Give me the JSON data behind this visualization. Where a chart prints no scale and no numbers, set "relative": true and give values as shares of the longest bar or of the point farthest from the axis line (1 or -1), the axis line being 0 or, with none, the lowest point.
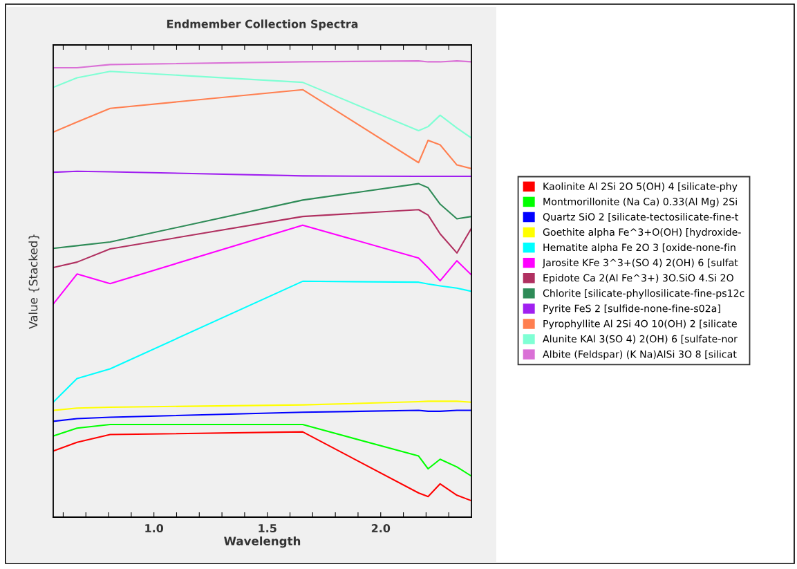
{
  "chart_data": {
    "type": "line",
    "title": "Endmember Collection Spectra",
    "xlabel": "Wavelength",
    "ylabel": "Value {Stacked}",
    "relative": true,
    "x": [
      0.556,
      0.661,
      0.807,
      1.656,
      2.167,
      2.209,
      2.262,
      2.336,
      2.4
    ],
    "xlim": [
      0.556,
      2.4
    ],
    "xticks": [
      {
        "value": 0.6,
        "label": null
      },
      {
        "value": 0.7,
        "label": null
      },
      {
        "value": 0.8,
        "label": null
      },
      {
        "value": 0.9,
        "label": null
      },
      {
        "value": 1.0,
        "label": "1.0"
      },
      {
        "value": 1.1,
        "label": null
      },
      {
        "value": 1.2,
        "label": null
      },
      {
        "value": 1.3,
        "label": null
      },
      {
        "value": 1.4,
        "label": null
      },
      {
        "value": 1.5,
        "label": "1.5"
      },
      {
        "value": 1.6,
        "label": null
      },
      {
        "value": 1.7,
        "label": null
      },
      {
        "value": 1.8,
        "label": null
      },
      {
        "value": 1.9,
        "label": null
      },
      {
        "value": 2.0,
        "label": "2.0"
      },
      {
        "value": 2.1,
        "label": null
      },
      {
        "value": 2.2,
        "label": null
      },
      {
        "value": 2.3,
        "label": null
      }
    ],
    "grid": false,
    "legend": "right",
    "marker": "none",
    "line_style": "solid",
    "series": [
      {
        "name": "Kaolinite Al 2Si 2O 5(OH) 4 [silicate-phy",
        "color": "#ff0000",
        "values": [
          0.145,
          0.164,
          0.181,
          0.187,
          0.053,
          0.045,
          0.073,
          0.048,
          0.036
        ]
      },
      {
        "name": "Montmorillonite (Na Ca) 0.33(Al Mg) 2Si",
        "color": "#00ff00",
        "values": [
          0.178,
          0.195,
          0.203,
          0.203,
          0.134,
          0.106,
          0.127,
          0.11,
          0.09
        ]
      },
      {
        "name": "Quartz SiO 2 [silicate-tectosilicate-fine-t",
        "color": "#0000ff",
        "values": [
          0.21,
          0.216,
          0.219,
          0.23,
          0.234,
          0.232,
          0.232,
          0.234,
          0.234
        ]
      },
      {
        "name": "Goethite alpha Fe^3+O(OH) [hydroxide-",
        "color": "#ffff00",
        "values": [
          0.234,
          0.239,
          0.241,
          0.246,
          0.253,
          0.254,
          0.254,
          0.254,
          0.252
        ]
      },
      {
        "name": "Hematite alpha Fe 2O 3 [oxide-none-fin",
        "color": "#00ffff",
        "values": [
          0.252,
          0.304,
          0.325,
          0.517,
          0.515,
          0.511,
          0.507,
          0.502,
          0.495
        ]
      },
      {
        "name": "Jarosite KFe 3^3+(SO 4) 2(OH) 6 [sulfat",
        "color": "#ff00ff",
        "values": [
          0.467,
          0.533,
          0.512,
          0.64,
          0.568,
          0.547,
          0.518,
          0.562,
          0.531
        ]
      },
      {
        "name": "Epidote Ca 2(Al Fe^3+) 3O.SiO 4.Si 2O",
        "color": "#b03060",
        "values": [
          0.547,
          0.559,
          0.588,
          0.659,
          0.674,
          0.662,
          0.621,
          0.579,
          0.633
        ]
      },
      {
        "name": "Chlorite [silicate-phyllosilicate-fine-ps12c",
        "color": "#2e8b57",
        "values": [
          0.589,
          0.595,
          0.603,
          0.695,
          0.731,
          0.722,
          0.686,
          0.654,
          0.659
        ]
      },
      {
        "name": "Pyrite FeS 2 [sulfide-none-fine-s02a]",
        "color": "#a020f0",
        "values": [
          0.756,
          0.758,
          0.757,
          0.748,
          0.747,
          0.747,
          0.747,
          0.747,
          0.747
        ]
      },
      {
        "name": "Pyrophyllite Al 2Si 4O 10(OH) 2 [silicate",
        "color": "#ff7f50",
        "values": [
          0.844,
          0.866,
          0.896,
          0.937,
          0.777,
          0.826,
          0.816,
          0.772,
          0.764
        ]
      },
      {
        "name": "Alunite KAl 3(SO 4) 2(OH) 6 [sulfate-nor",
        "color": "#7fffd4",
        "values": [
          0.942,
          0.963,
          0.977,
          0.953,
          0.847,
          0.856,
          0.881,
          0.853,
          0.831
        ]
      },
      {
        "name": "Albite (Feldspar) (K Na)AlSi 3O 8 [silicat",
        "color": "#da70d6",
        "values": [
          0.985,
          0.985,
          0.992,
          0.998,
          1.0,
          0.998,
          0.998,
          1.0,
          0.998
        ]
      }
    ]
  }
}
